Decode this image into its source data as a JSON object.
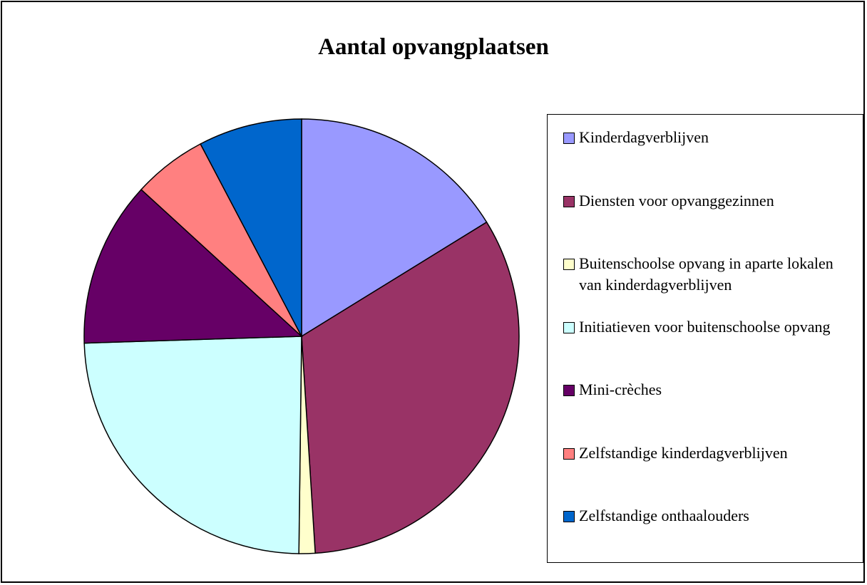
{
  "chart_data": {
    "type": "pie",
    "title": "Aantal opvangplaatsen",
    "categories": [
      "Kinderdagverblijven",
      "Diensten voor opvanggezinnen",
      "Buitenschoolse opvang in aparte lokalen van kinderdagverblijven",
      "Initiatieven voor buitenschoolse opvang",
      "Mini-crèches",
      "Zelfstandige kinderdagverblijven",
      "Zelfstandige onthaalouders"
    ],
    "values": [
      16.2,
      32.8,
      1.2,
      24.3,
      12.3,
      5.5,
      7.7
    ],
    "colors": [
      "#9999ff",
      "#993366",
      "#ffffcc",
      "#ccffff",
      "#660066",
      "#ff8080",
      "#0066cc"
    ],
    "legend": "right"
  }
}
